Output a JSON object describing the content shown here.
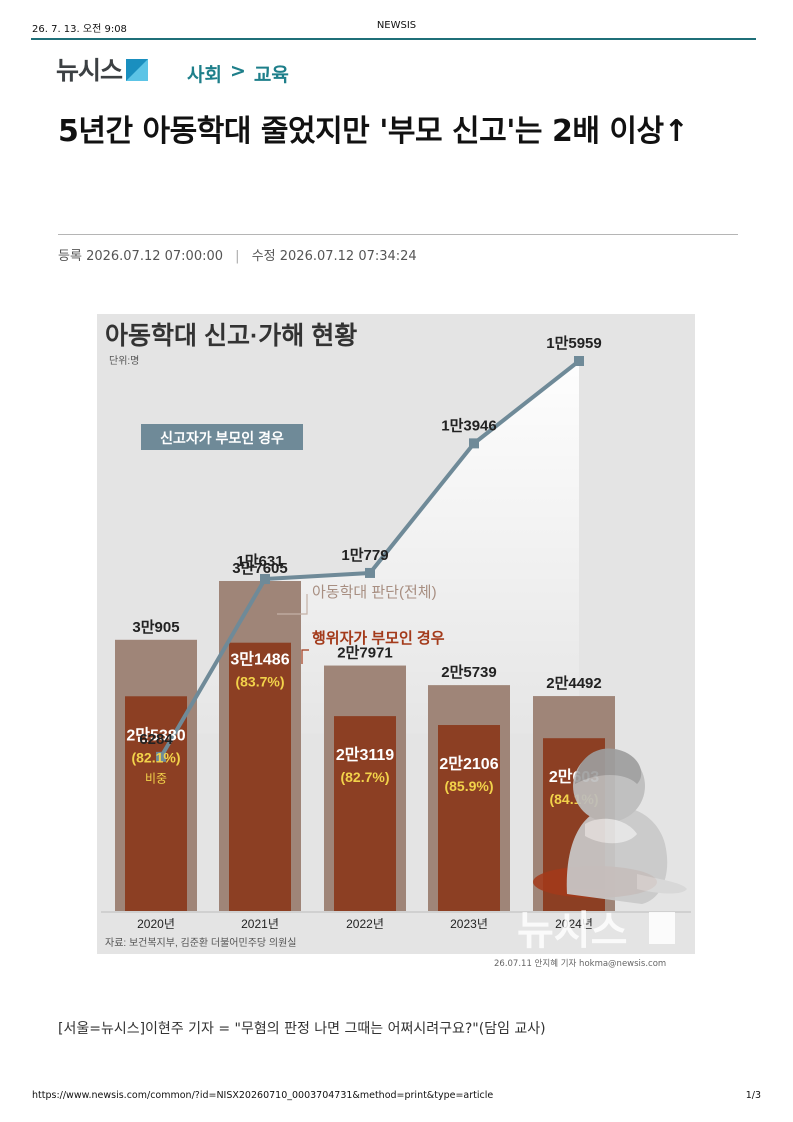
{
  "print_header": {
    "date": "26. 7. 13. 오전 9:08",
    "site": "NEWSIS"
  },
  "logo": {
    "text": "뉴시스"
  },
  "breadcrumb": {
    "section": "사회",
    "separator": ">",
    "subsection": "교육"
  },
  "article": {
    "headline": "5년간 아동학대 줄었지만 '부모 신고'는 2배 이상↑",
    "registered_label": "등록",
    "registered": "2026.07.12 07:00:00",
    "modified_label": "수정",
    "modified": "2026.07.12 07:34:24",
    "lead": "[서울=뉴시스]이현주 기자 = \"무혐의 판정 나면 그때는 어쩌시려구요?\"(담임 교사)"
  },
  "graphic_credit": "26.07.11 안지혜 기자 hokma@newsis.com",
  "watermark": "뉴시스",
  "colors": {
    "accent": "#1e7f8a",
    "total_bar": "#9f8578",
    "parent_bar": "#8c3f23",
    "line": "#6f8a98",
    "highlight_text": "#f2d24a",
    "chart_bg": "#e4e4e4"
  },
  "chart_data": {
    "type": "bar",
    "title": "아동학대 신고·가해 현황",
    "unit_label": "단위:명",
    "categories": [
      "2020년",
      "2021년",
      "2022년",
      "2023년",
      "2024년"
    ],
    "series": [
      {
        "name": "아동학대 판단(전체)",
        "type": "bar",
        "values": [
          30905,
          37605,
          27971,
          25739,
          24492
        ],
        "labels": [
          "3만905",
          "3만7605",
          "2만7971",
          "2만5739",
          "2만4492"
        ]
      },
      {
        "name": "행위자가 부모인 경우",
        "type": "bar",
        "values": [
          25380,
          31486,
          23119,
          22106,
          20603
        ],
        "labels": [
          "2만5380",
          "3만1486",
          "2만3119",
          "2만2106",
          "2만603"
        ],
        "shares": [
          "(82.1%)",
          "(83.7%)",
          "(82.7%)",
          "(85.9%)",
          "(84.1%)"
        ],
        "share_caption": "비중"
      },
      {
        "name": "신고자가 부모인 경우",
        "type": "line",
        "values": [
          6284,
          10631,
          10779,
          13946,
          15959
        ],
        "labels": [
          "6284",
          "1만631",
          "1만779",
          "1만3946",
          "1만5959"
        ]
      }
    ],
    "source": "자료: 보건복지부, 김준환 더불어민주당 의원실"
  },
  "print_footer": {
    "url": "https://www.newsis.com/common/?id=NISX20260710_0003704731&method=print&type=article",
    "page": "1/3"
  }
}
